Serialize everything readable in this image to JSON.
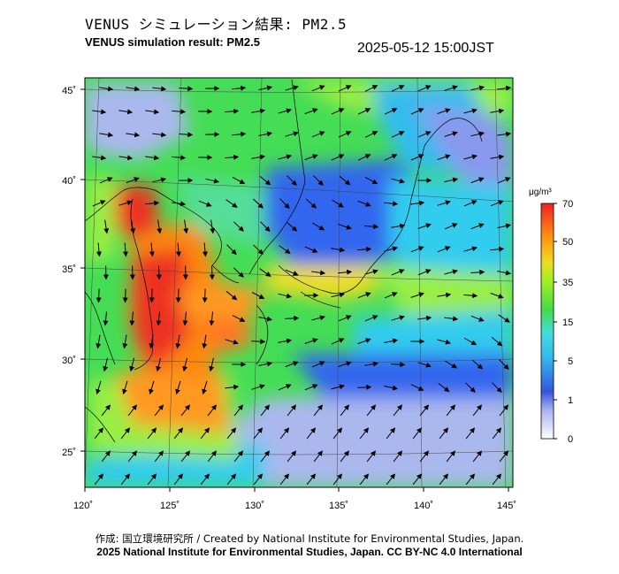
{
  "title_ja": "VENUS シミュレーション結果: PM2.5",
  "title_en": "VENUS simulation result: PM2.5",
  "timestamp": "2025-05-12 15:00JST",
  "lon_ticks": [
    "120˚",
    "125˚",
    "130˚",
    "135˚",
    "140˚",
    "145˚"
  ],
  "lat_ticks": [
    "45˚",
    "40˚",
    "35˚",
    "30˚",
    "25˚"
  ],
  "colorbar": {
    "unit": "μg/m³",
    "labels": [
      "70",
      "50",
      "35",
      "15",
      "5",
      "1",
      "0"
    ]
  },
  "credit_line1": "作成: 国立環境研究所 / Created by National Institute for Environmental Studies, Japan.",
  "credit_line2": "2025 National Institute for Environmental Studies, Japan. CC BY-NC 4.0 International",
  "colors": {
    "low": "#f4f4fc",
    "blue": "#3366ee",
    "cyan": "#33ccee",
    "green": "#44dd44",
    "yellow": "#eedd22",
    "orange": "#ff8811",
    "red": "#ee2222"
  }
}
